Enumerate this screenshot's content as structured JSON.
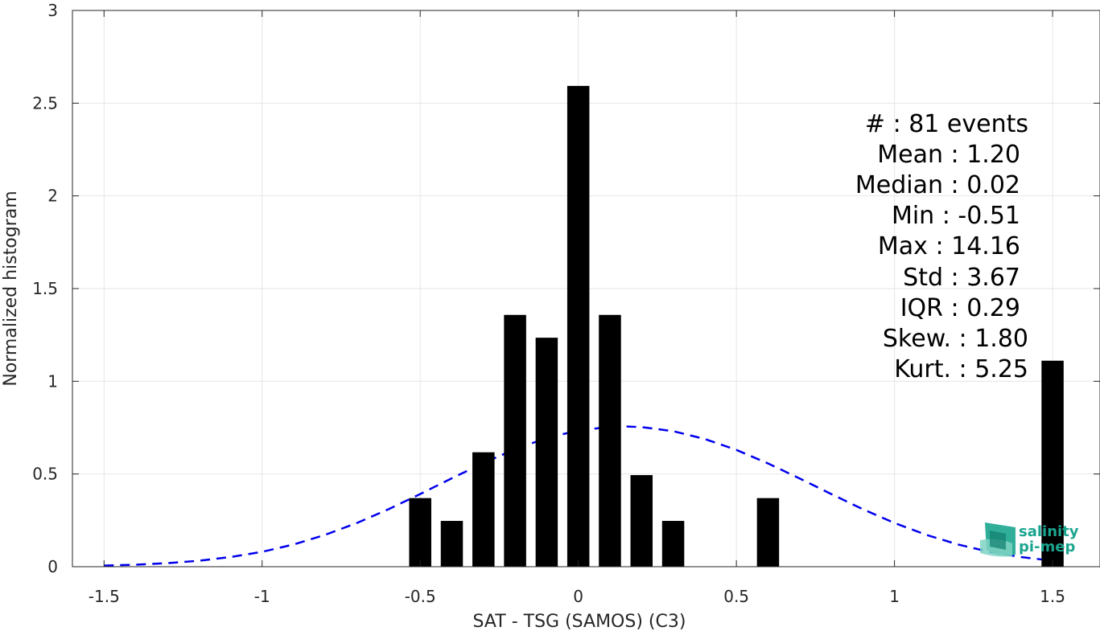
{
  "chart_data": {
    "type": "bar",
    "xlabel": "SAT - TSG (SAMOS) (C3)",
    "ylabel": "Normalized histogram",
    "xlim": [
      -1.6,
      1.65
    ],
    "ylim": [
      0,
      3
    ],
    "x_ticks": [
      -1.5,
      -1,
      -0.5,
      0,
      0.5,
      1,
      1.5
    ],
    "x_tick_labels": [
      "-1.5",
      "-1",
      "-0.5",
      "0",
      "0.5",
      "1",
      "1.5"
    ],
    "y_ticks": [
      0,
      0.5,
      1,
      1.5,
      2,
      2.5,
      3
    ],
    "y_tick_labels": [
      "0",
      "0.5",
      "1",
      "1.5",
      "2",
      "2.5",
      "3"
    ],
    "grid": true,
    "bar_width": 0.07,
    "bars": [
      {
        "x": -0.5,
        "value": 0.37
      },
      {
        "x": -0.4,
        "value": 0.247
      },
      {
        "x": -0.3,
        "value": 0.617
      },
      {
        "x": -0.2,
        "value": 1.358
      },
      {
        "x": -0.1,
        "value": 1.235
      },
      {
        "x": 0.0,
        "value": 2.593
      },
      {
        "x": 0.1,
        "value": 1.358
      },
      {
        "x": 0.2,
        "value": 0.494
      },
      {
        "x": 0.3,
        "value": 0.247
      },
      {
        "x": 0.6,
        "value": 0.37
      },
      {
        "x": 1.5,
        "value": 1.111
      }
    ],
    "bar_color": "#000000",
    "fit_curve": {
      "style": "dashed",
      "color": "#0000ee",
      "x": [
        -1.5,
        -1.4,
        -1.3,
        -1.2,
        -1.1,
        -1.0,
        -0.9,
        -0.8,
        -0.7,
        -0.6,
        -0.5,
        -0.4,
        -0.3,
        -0.2,
        -0.1,
        0.0,
        0.1,
        0.15,
        0.2,
        0.3,
        0.4,
        0.5,
        0.6,
        0.7,
        0.8,
        0.9,
        1.0,
        1.1,
        1.2,
        1.3,
        1.4,
        1.5
      ],
      "y": [
        0.006,
        0.011,
        0.019,
        0.032,
        0.052,
        0.08,
        0.12,
        0.172,
        0.236,
        0.31,
        0.392,
        0.477,
        0.559,
        0.634,
        0.694,
        0.735,
        0.754,
        0.756,
        0.753,
        0.731,
        0.689,
        0.63,
        0.557,
        0.476,
        0.392,
        0.31,
        0.236,
        0.172,
        0.12,
        0.08,
        0.052,
        0.032
      ]
    },
    "stats_lines": [
      "#  : 81 events",
      "Mean : 1.20",
      "Median : 0.02",
      "Min : -0.51",
      "Max : 14.16",
      "Std : 3.67",
      "IQR : 0.29",
      "Skew. : 1.80",
      "Kurt. : 5.25"
    ]
  },
  "logo": {
    "line1": "salinity",
    "line2": "pi-mep",
    "color": "#1aa58f"
  }
}
